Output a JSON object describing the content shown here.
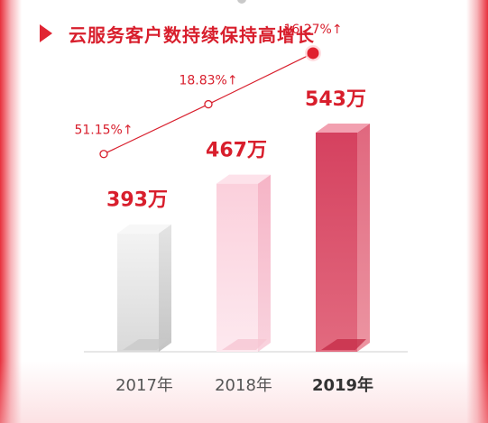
{
  "header": {
    "title": "云服务客户数持续保持高增长",
    "icon": "triangle-arrow-icon"
  },
  "colors": {
    "accent": "#d81e2c",
    "border": "#e8303c"
  },
  "chart_data": {
    "type": "bar",
    "categories": [
      "2017年",
      "2018年",
      "2019年"
    ],
    "values": [
      393,
      467,
      543
    ],
    "value_labels": [
      "393万",
      "467万",
      "543万"
    ],
    "unit": "万",
    "growth_rates": [
      51.15,
      18.83,
      16.27
    ],
    "growth_labels": [
      "51.15%↑",
      "18.83%↑",
      "16.27%↑"
    ],
    "bar_styles": [
      "gray",
      "pink",
      "crimson"
    ]
  }
}
